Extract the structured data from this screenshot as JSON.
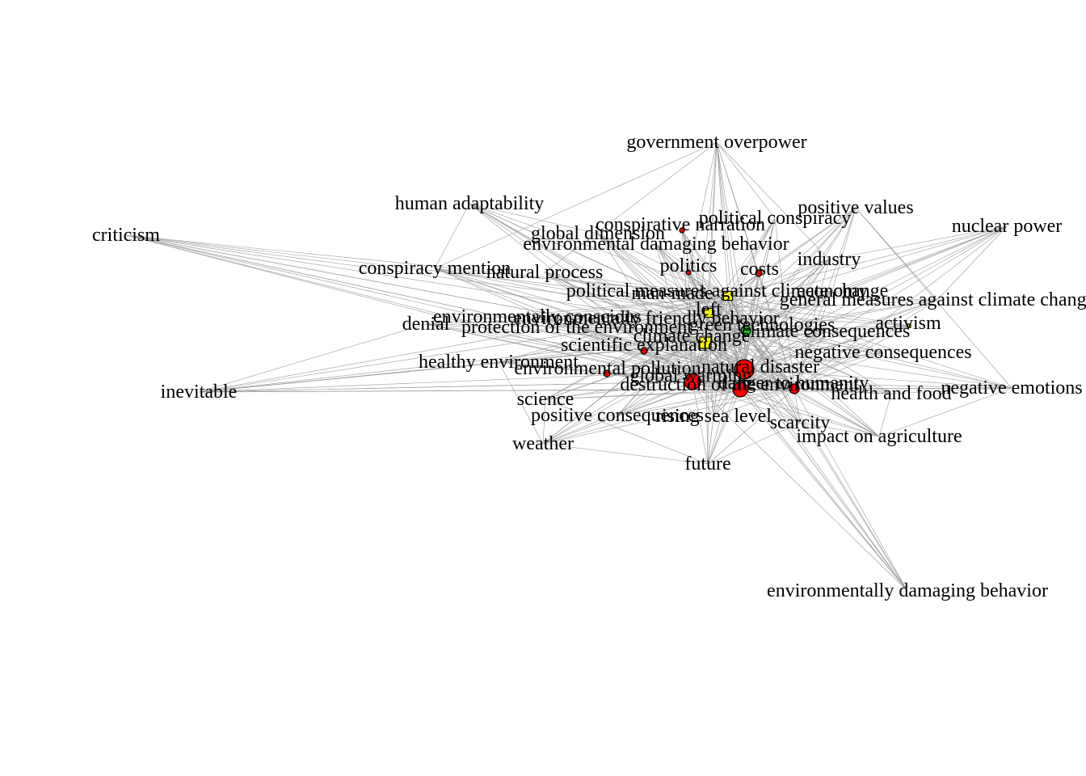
{
  "diagram": {
    "type": "network",
    "colors": {
      "edge": "#9a9a9a",
      "red": "#ff0000",
      "yellow": "#ffff00",
      "green": "#1fbf1f",
      "label": "#000000"
    },
    "nodes": [
      {
        "id": "government_overpower",
        "label": "government overpower"
      },
      {
        "id": "human_adaptability",
        "label": "human adaptability"
      },
      {
        "id": "criticism",
        "label": "criticism"
      },
      {
        "id": "positive_values",
        "label": "positive values"
      },
      {
        "id": "political_conspiracy",
        "label": "political conspiracy"
      },
      {
        "id": "conspirative_narration",
        "label": "conspirative narration",
        "marker": "circle",
        "color": "red",
        "size": 3
      },
      {
        "id": "global_dimension",
        "label": "global dimension"
      },
      {
        "id": "nuclear_power",
        "label": "nuclear power"
      },
      {
        "id": "environmental_damaging_behavior",
        "label": "environmental damaging behavior"
      },
      {
        "id": "industry",
        "label": "industry"
      },
      {
        "id": "conspiracy_mention",
        "label": "conspiracy mention"
      },
      {
        "id": "politics",
        "label": "politics",
        "marker": "circle",
        "color": "red",
        "size": 3
      },
      {
        "id": "costs",
        "label": "costs",
        "marker": "circle",
        "color": "red",
        "size": 4
      },
      {
        "id": "natural_process",
        "label": "natural process"
      },
      {
        "id": "political_measures",
        "label": "political measures against climate change"
      },
      {
        "id": "man_made",
        "label": "man-made",
        "marker": "square",
        "color": "yellow",
        "size": 11
      },
      {
        "id": "economy",
        "label": "economy"
      },
      {
        "id": "general_measures",
        "label": "general measures against climate change"
      },
      {
        "id": "left",
        "label": "left",
        "marker": "square",
        "color": "yellow",
        "size": 11
      },
      {
        "id": "environmentally_conscious",
        "label": "environmentally conscious"
      },
      {
        "id": "environmentally_friendly",
        "label": "environmentally friendly behavior"
      },
      {
        "id": "denial",
        "label": "denial"
      },
      {
        "id": "protection",
        "label": "protection of the environment"
      },
      {
        "id": "green_technologies",
        "label": "green technologies",
        "marker": "circle",
        "color": "green",
        "size": 6
      },
      {
        "id": "activism",
        "label": "activism",
        "marker": "square",
        "color": "yellow",
        "size": 4
      },
      {
        "id": "climate_change",
        "label": "climate change",
        "marker": "square",
        "color": "yellow",
        "size": 14
      },
      {
        "id": "climate_consequences",
        "label": "climate consequences"
      },
      {
        "id": "scientific_explanation",
        "label": "scientific explanation",
        "marker": "circle",
        "color": "red",
        "size": 4
      },
      {
        "id": "negative_consequences",
        "label": "negative consequences"
      },
      {
        "id": "healthy_environment",
        "label": "healthy environment"
      },
      {
        "id": "natural_disaster",
        "label": "natural disaster",
        "marker": "circle",
        "color": "red",
        "size": 12
      },
      {
        "id": "environmental_pollution",
        "label": "environmental pollution",
        "marker": "circle",
        "color": "red",
        "size": 4
      },
      {
        "id": "global_warming",
        "label": "global warming",
        "marker": "circle",
        "color": "red",
        "size": 10
      },
      {
        "id": "danger_to_humanity",
        "label": "danger to humanity",
        "marker": "circle",
        "color": "red",
        "size": 6
      },
      {
        "id": "destruction",
        "label": "destruction of the environment",
        "marker": "circle",
        "color": "red",
        "size": 9
      },
      {
        "id": "inevitable",
        "label": "inevitable"
      },
      {
        "id": "health_and_food",
        "label": "health and food"
      },
      {
        "id": "negative_emotions",
        "label": "negative emotions"
      },
      {
        "id": "science",
        "label": "science"
      },
      {
        "id": "positive_consequences",
        "label": "positive consequences"
      },
      {
        "id": "rising_sea_level",
        "label": "rising sea level"
      },
      {
        "id": "scarcity",
        "label": "scarcity"
      },
      {
        "id": "impact_on_agriculture",
        "label": "impact on agriculture"
      },
      {
        "id": "weather",
        "label": "weather"
      },
      {
        "id": "future",
        "label": "future"
      },
      {
        "id": "env_damaging_behavior2",
        "label": "environmentally damaging behavior"
      }
    ]
  }
}
